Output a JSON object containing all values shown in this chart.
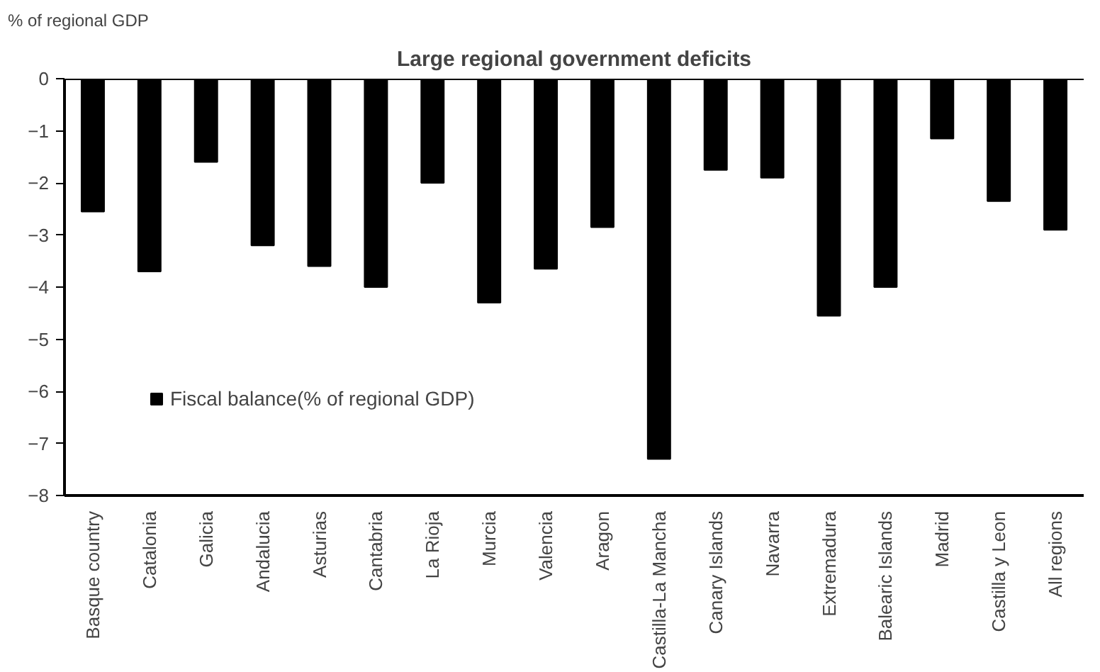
{
  "chart_data": {
    "type": "bar",
    "title": "Large regional government deficits",
    "ylabel": "% of regional GDP",
    "categories": [
      "Basque country",
      "Catalonia",
      "Galicia",
      "Andalucia",
      "Asturias",
      "Cantabria",
      "La Rioja",
      "Murcia",
      "Valencia",
      "Aragon",
      "Castilla-La Mancha",
      "Canary Islands",
      "Navarra",
      "Extremadura",
      "Balearic Islands",
      "Madrid",
      "Castilla y Leon",
      "All regions"
    ],
    "series": [
      {
        "name": "Fiscal balance(% of regional GDP)",
        "color": "#000000",
        "values": [
          -2.55,
          -3.7,
          -1.6,
          -3.2,
          -3.6,
          -4.0,
          -2.0,
          -4.3,
          -3.65,
          -2.85,
          -7.3,
          -1.75,
          -1.9,
          -4.55,
          -4.0,
          -1.15,
          -2.35,
          -2.9
        ]
      }
    ],
    "ylim": [
      -8,
      0
    ],
    "yticks": [
      0,
      -1,
      -2,
      -3,
      -4,
      -5,
      -6,
      -7,
      -8
    ],
    "grid": false,
    "legend": "bottom left"
  }
}
